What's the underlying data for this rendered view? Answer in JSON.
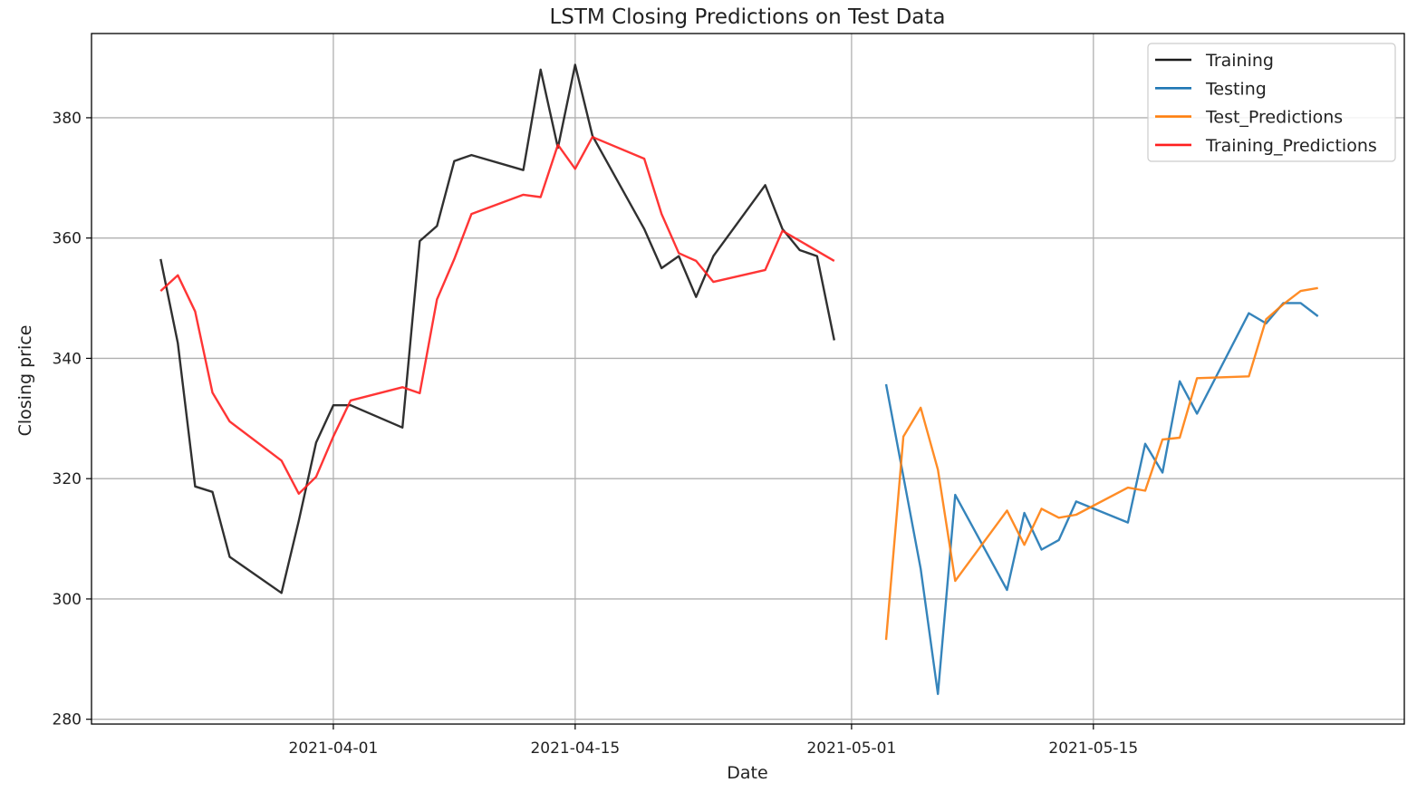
{
  "chart_data": {
    "type": "line",
    "title": "LSTM Closing Predictions on Test Data",
    "xlabel": "Date",
    "ylabel": "Closing price",
    "x_type": "date",
    "xlim": [
      "2021-03-18",
      "2021-06-02"
    ],
    "ylim": [
      279.2,
      394.0
    ],
    "grid": true,
    "legend_position": "top-right",
    "x_ticks": [
      "2021-04-01",
      "2021-04-15",
      "2021-05-01",
      "2021-05-15"
    ],
    "y_ticks": [
      280,
      300,
      320,
      340,
      360,
      380
    ],
    "series": [
      {
        "name": "Training",
        "color": "#1a1a1a",
        "points": [
          {
            "x": "2021-03-22",
            "y": 356.5
          },
          {
            "x": "2021-03-23",
            "y": 342.5
          },
          {
            "x": "2021-03-24",
            "y": 318.7
          },
          {
            "x": "2021-03-25",
            "y": 317.8
          },
          {
            "x": "2021-03-26",
            "y": 307.0
          },
          {
            "x": "2021-03-29",
            "y": 301.0
          },
          {
            "x": "2021-03-30",
            "y": 313.0
          },
          {
            "x": "2021-03-31",
            "y": 326.0
          },
          {
            "x": "2021-04-01",
            "y": 332.2
          },
          {
            "x": "2021-04-02",
            "y": 332.2
          },
          {
            "x": "2021-04-05",
            "y": 328.5
          },
          {
            "x": "2021-04-06",
            "y": 359.5
          },
          {
            "x": "2021-04-07",
            "y": 362.0
          },
          {
            "x": "2021-04-08",
            "y": 372.8
          },
          {
            "x": "2021-04-09",
            "y": 373.8
          },
          {
            "x": "2021-04-12",
            "y": 371.3
          },
          {
            "x": "2021-04-13",
            "y": 388.0
          },
          {
            "x": "2021-04-14",
            "y": 375.0
          },
          {
            "x": "2021-04-15",
            "y": 388.8
          },
          {
            "x": "2021-04-16",
            "y": 377.0
          },
          {
            "x": "2021-04-19",
            "y": 361.5
          },
          {
            "x": "2021-04-20",
            "y": 355.0
          },
          {
            "x": "2021-04-21",
            "y": 357.0
          },
          {
            "x": "2021-04-22",
            "y": 350.2
          },
          {
            "x": "2021-04-23",
            "y": 357.0
          },
          {
            "x": "2021-04-26",
            "y": 368.8
          },
          {
            "x": "2021-04-27",
            "y": 361.5
          },
          {
            "x": "2021-04-28",
            "y": 358.0
          },
          {
            "x": "2021-04-29",
            "y": 357.0
          },
          {
            "x": "2021-04-30",
            "y": 343.0
          }
        ]
      },
      {
        "name": "Testing",
        "color": "#1f77b4",
        "points": [
          {
            "x": "2021-05-03",
            "y": 335.7
          },
          {
            "x": "2021-05-05",
            "y": 305.0
          },
          {
            "x": "2021-05-06",
            "y": 284.2
          },
          {
            "x": "2021-05-07",
            "y": 317.3
          },
          {
            "x": "2021-05-10",
            "y": 301.5
          },
          {
            "x": "2021-05-11",
            "y": 314.3
          },
          {
            "x": "2021-05-12",
            "y": 308.2
          },
          {
            "x": "2021-05-13",
            "y": 309.8
          },
          {
            "x": "2021-05-14",
            "y": 316.2
          },
          {
            "x": "2021-05-17",
            "y": 312.7
          },
          {
            "x": "2021-05-18",
            "y": 325.8
          },
          {
            "x": "2021-05-19",
            "y": 321.0
          },
          {
            "x": "2021-05-20",
            "y": 336.2
          },
          {
            "x": "2021-05-21",
            "y": 330.8
          },
          {
            "x": "2021-05-24",
            "y": 347.5
          },
          {
            "x": "2021-05-25",
            "y": 345.8
          },
          {
            "x": "2021-05-26",
            "y": 349.2
          },
          {
            "x": "2021-05-27",
            "y": 349.2
          },
          {
            "x": "2021-05-28",
            "y": 347.0
          }
        ]
      },
      {
        "name": "Test_Predictions",
        "color": "#ff7f0e",
        "points": [
          {
            "x": "2021-05-03",
            "y": 293.2
          },
          {
            "x": "2021-05-04",
            "y": 327.0
          },
          {
            "x": "2021-05-05",
            "y": 331.8
          },
          {
            "x": "2021-05-06",
            "y": 321.5
          },
          {
            "x": "2021-05-07",
            "y": 303.0
          },
          {
            "x": "2021-05-10",
            "y": 314.7
          },
          {
            "x": "2021-05-11",
            "y": 309.0
          },
          {
            "x": "2021-05-12",
            "y": 315.0
          },
          {
            "x": "2021-05-13",
            "y": 313.5
          },
          {
            "x": "2021-05-14",
            "y": 314.0
          },
          {
            "x": "2021-05-17",
            "y": 318.5
          },
          {
            "x": "2021-05-18",
            "y": 318.0
          },
          {
            "x": "2021-05-19",
            "y": 326.5
          },
          {
            "x": "2021-05-20",
            "y": 326.8
          },
          {
            "x": "2021-05-21",
            "y": 336.7
          },
          {
            "x": "2021-05-24",
            "y": 337.0
          },
          {
            "x": "2021-05-25",
            "y": 346.5
          },
          {
            "x": "2021-05-26",
            "y": 349.0
          },
          {
            "x": "2021-05-27",
            "y": 351.2
          },
          {
            "x": "2021-05-28",
            "y": 351.7
          }
        ]
      },
      {
        "name": "Training_Predictions",
        "color": "#ff1f1f",
        "points": [
          {
            "x": "2021-03-22",
            "y": 351.2
          },
          {
            "x": "2021-03-23",
            "y": 353.8
          },
          {
            "x": "2021-03-24",
            "y": 347.8
          },
          {
            "x": "2021-03-25",
            "y": 334.3
          },
          {
            "x": "2021-03-26",
            "y": 329.5
          },
          {
            "x": "2021-03-29",
            "y": 323.0
          },
          {
            "x": "2021-03-30",
            "y": 317.5
          },
          {
            "x": "2021-03-31",
            "y": 320.3
          },
          {
            "x": "2021-04-01",
            "y": 327.0
          },
          {
            "x": "2021-04-02",
            "y": 333.0
          },
          {
            "x": "2021-04-05",
            "y": 335.2
          },
          {
            "x": "2021-04-06",
            "y": 334.2
          },
          {
            "x": "2021-04-07",
            "y": 349.8
          },
          {
            "x": "2021-04-08",
            "y": 356.5
          },
          {
            "x": "2021-04-09",
            "y": 364.0
          },
          {
            "x": "2021-04-12",
            "y": 367.2
          },
          {
            "x": "2021-04-13",
            "y": 366.8
          },
          {
            "x": "2021-04-14",
            "y": 375.5
          },
          {
            "x": "2021-04-15",
            "y": 371.5
          },
          {
            "x": "2021-04-16",
            "y": 376.8
          },
          {
            "x": "2021-04-19",
            "y": 373.2
          },
          {
            "x": "2021-04-20",
            "y": 364.0
          },
          {
            "x": "2021-04-21",
            "y": 357.5
          },
          {
            "x": "2021-04-22",
            "y": 356.2
          },
          {
            "x": "2021-04-23",
            "y": 352.7
          },
          {
            "x": "2021-04-26",
            "y": 354.7
          },
          {
            "x": "2021-04-27",
            "y": 361.2
          },
          {
            "x": "2021-04-30",
            "y": 356.2
          }
        ]
      }
    ]
  }
}
